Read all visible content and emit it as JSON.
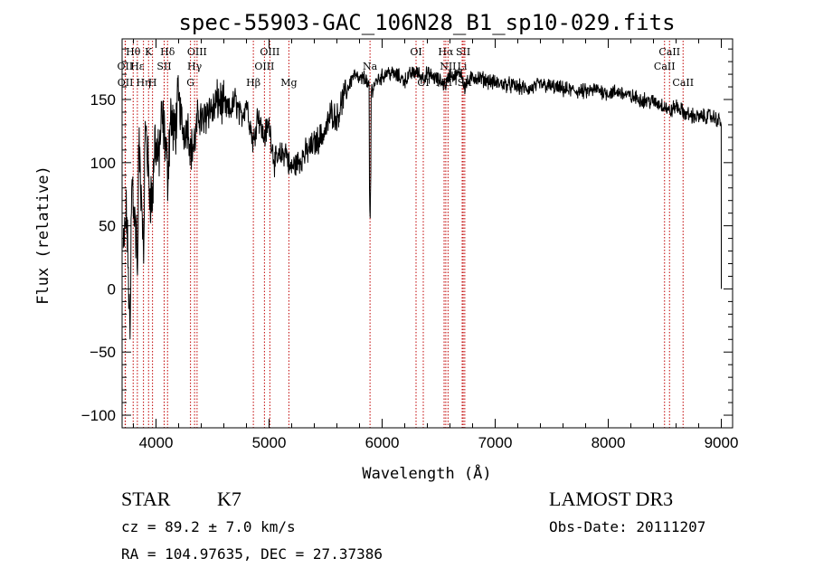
{
  "chart_data": {
    "type": "line",
    "title": "spec-55903-GAC_106N28_B1_sp10-029.fits",
    "xlabel": "Wavelength (Å)",
    "ylabel": "Flux (relative)",
    "xlim": [
      3700,
      9100
    ],
    "ylim": [
      -110,
      198
    ],
    "xticks": [
      4000,
      5000,
      6000,
      7000,
      8000,
      9000
    ],
    "xtick_labels": [
      "4000",
      "5000",
      "6000",
      "7000",
      "8000",
      "9000"
    ],
    "yticks": [
      -100,
      -50,
      0,
      50,
      100,
      150
    ],
    "ytick_labels": [
      "−100",
      "−50",
      "0",
      "50",
      "100",
      "150"
    ],
    "spectrum_anchors": {
      "wavelength": [
        3710,
        3740,
        3760,
        3790,
        3820,
        3850,
        3880,
        3910,
        3940,
        3968,
        3990,
        4020,
        4050,
        4080,
        4102,
        4130,
        4160,
        4200,
        4240,
        4280,
        4310,
        4340,
        4380,
        4420,
        4460,
        4500,
        4550,
        4600,
        4650,
        4700,
        4750,
        4800,
        4861,
        4900,
        4950,
        5000,
        5050,
        5100,
        5150,
        5183,
        5250,
        5300,
        5350,
        5400,
        5450,
        5500,
        5550,
        5600,
        5650,
        5700,
        5750,
        5800,
        5850,
        5893,
        5950,
        6000,
        6050,
        6100,
        6150,
        6200,
        6250,
        6300,
        6350,
        6400,
        6450,
        6500,
        6563,
        6600,
        6650,
        6700,
        6730,
        6800,
        6900,
        7000,
        7100,
        7200,
        7300,
        7400,
        7500,
        7600,
        7700,
        7800,
        7900,
        8000,
        8100,
        8200,
        8300,
        8400,
        8498,
        8542,
        8600,
        8662,
        8700,
        8800,
        8900,
        8950,
        9000
      ],
      "flux": [
        30,
        60,
        -5,
        90,
        40,
        110,
        60,
        130,
        80,
        70,
        120,
        100,
        135,
        120,
        90,
        140,
        120,
        150,
        125,
        130,
        110,
        115,
        140,
        130,
        145,
        140,
        150,
        145,
        140,
        150,
        135,
        148,
        115,
        140,
        120,
        130,
        100,
        105,
        110,
        95,
        100,
        105,
        110,
        115,
        120,
        125,
        140,
        135,
        150,
        160,
        170,
        165,
        168,
        155,
        165,
        168,
        172,
        170,
        168,
        165,
        170,
        172,
        168,
        170,
        168,
        165,
        162,
        170,
        168,
        172,
        160,
        168,
        166,
        163,
        162,
        160,
        158,
        162,
        160,
        158,
        157,
        156,
        158,
        155,
        156,
        152,
        150,
        148,
        145,
        140,
        145,
        140,
        138,
        136,
        137,
        135,
        132
      ]
    },
    "absorption_features": [
      {
        "wavelength": 3770,
        "flux": -40
      },
      {
        "wavelength": 3835,
        "flux": 5
      },
      {
        "wavelength": 3890,
        "flux": 20
      },
      {
        "wavelength": 5893,
        "flux": 50
      }
    ],
    "spectral_lines": [
      {
        "label": "Hθ",
        "wavelength": 3798,
        "row": 1
      },
      {
        "label": "Hε",
        "wavelength": 3835,
        "row": 2
      },
      {
        "label": "OII",
        "wavelength": 3727,
        "row": 2
      },
      {
        "label": "OII",
        "wavelength": 3729,
        "row": 3
      },
      {
        "label": "Hη",
        "wavelength": 3889,
        "row": 3
      },
      {
        "label": "K",
        "wavelength": 3934,
        "row": 1
      },
      {
        "label": "H",
        "wavelength": 3969,
        "row": 3
      },
      {
        "label": "Hδ",
        "wavelength": 4102,
        "row": 1
      },
      {
        "label": "SII",
        "wavelength": 4072,
        "row": 2
      },
      {
        "label": "OIII",
        "wavelength": 4363,
        "row": 1
      },
      {
        "label": "Hγ",
        "wavelength": 4341,
        "row": 2
      },
      {
        "label": "G",
        "wavelength": 4305,
        "row": 3
      },
      {
        "label": "Hβ",
        "wavelength": 4861,
        "row": 3
      },
      {
        "label": "OIII",
        "wavelength": 5007,
        "row": 1
      },
      {
        "label": "OIII",
        "wavelength": 4959,
        "row": 2
      },
      {
        "label": "Mg",
        "wavelength": 5175,
        "row": 3
      },
      {
        "label": "Na",
        "wavelength": 5893,
        "row": 2
      },
      {
        "label": "OI",
        "wavelength": 6300,
        "row": 1
      },
      {
        "label": "Hα",
        "wavelength": 6563,
        "row": 1
      },
      {
        "label": "SII",
        "wavelength": 6717,
        "row": 1
      },
      {
        "label": "NII",
        "wavelength": 6583,
        "row": 2
      },
      {
        "label": "Li",
        "wavelength": 6708,
        "row": 2
      },
      {
        "label": "OI",
        "wavelength": 6364,
        "row": 3
      },
      {
        "label": "NII",
        "wavelength": 6548,
        "row": 3
      },
      {
        "label": "SII",
        "wavelength": 6731,
        "row": 3
      },
      {
        "label": "CaII",
        "wavelength": 8542,
        "row": 1
      },
      {
        "label": "CaII",
        "wavelength": 8498,
        "row": 2
      },
      {
        "label": "CaII",
        "wavelength": 8662,
        "row": 3
      }
    ]
  },
  "info": {
    "class_label": "STAR",
    "subclass": "K7",
    "cz": "cz = 89.2 ± 7.0 km/s",
    "radec": "RA = 104.97635, DEC =  27.37386",
    "survey": "LAMOST DR3",
    "obs_date": "Obs-Date: 20111207"
  }
}
